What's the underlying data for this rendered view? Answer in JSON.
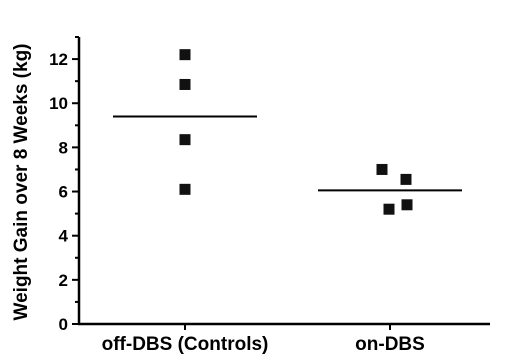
{
  "chart_data": {
    "type": "scatter",
    "ylabel": "Weight Gain over 8 Weeks (kg)",
    "xlabel": "",
    "ylim": [
      0,
      13
    ],
    "yticks": [
      0,
      2,
      4,
      6,
      8,
      10,
      12
    ],
    "grid": false,
    "groups": [
      {
        "label": "off-DBS (Controls)",
        "points": [
          12.2,
          10.85,
          8.35,
          6.1
        ],
        "mean": 9.4
      },
      {
        "label": "on-DBS",
        "points": [
          7.0,
          6.55,
          5.4,
          5.2
        ],
        "mean": 6.05
      }
    ],
    "colors": {
      "marker": "#111111",
      "axis": "#000000",
      "mean_line": "#000000"
    }
  }
}
